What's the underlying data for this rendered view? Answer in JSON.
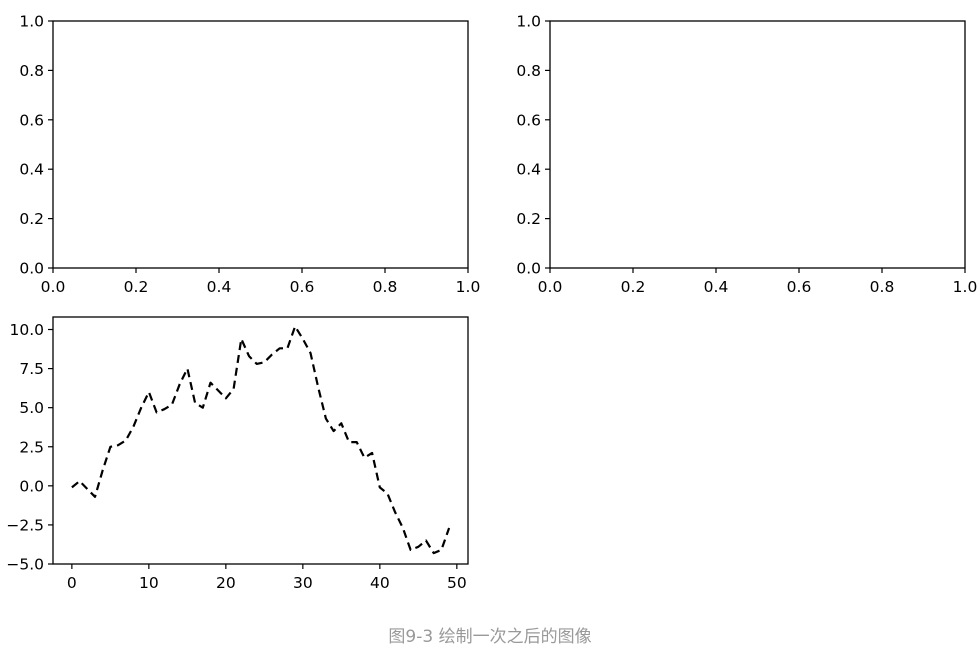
{
  "caption": "图9-3 绘制一次之后的图像",
  "colors": {
    "axes": "#000000",
    "line": "#000000",
    "caption": "#999999",
    "background": "#ffffff"
  },
  "chart_data": [
    {
      "type": "line",
      "subplot": "top-left",
      "empty": true,
      "xlim": [
        0,
        1.0
      ],
      "ylim": [
        0,
        1.0
      ],
      "xticks": [
        "0.0",
        "0.2",
        "0.4",
        "0.6",
        "0.8",
        "1.0"
      ],
      "yticks": [
        "0.0",
        "0.2",
        "0.4",
        "0.6",
        "0.8",
        "1.0"
      ],
      "grid": false,
      "series": []
    },
    {
      "type": "line",
      "subplot": "top-right",
      "empty": true,
      "xlim": [
        0,
        1.0
      ],
      "ylim": [
        0,
        1.0
      ],
      "xticks": [
        "0.0",
        "0.2",
        "0.4",
        "0.6",
        "0.8",
        "1.0"
      ],
      "yticks": [
        "0.0",
        "0.2",
        "0.4",
        "0.6",
        "0.8",
        "1.0"
      ],
      "grid": false,
      "series": []
    },
    {
      "type": "line",
      "subplot": "bottom-left",
      "xlim": [
        -2.45,
        51.45
      ],
      "ylim": [
        -5.0,
        10.8
      ],
      "xticks": [
        "0",
        "10",
        "20",
        "30",
        "40",
        "50"
      ],
      "yticks": [
        "−5.0",
        "−2.5",
        "0.0",
        "2.5",
        "5.0",
        "7.5",
        "10.0"
      ],
      "grid": false,
      "series": [
        {
          "style": "k--",
          "color": "#000000",
          "x": [
            0,
            1,
            2,
            3,
            4,
            5,
            6,
            7,
            8,
            9,
            10,
            11,
            12,
            13,
            14,
            15,
            16,
            17,
            18,
            19,
            20,
            21,
            22,
            23,
            24,
            25,
            26,
            27,
            28,
            29,
            30,
            31,
            32,
            33,
            34,
            35,
            36,
            37,
            38,
            39,
            40,
            41,
            42,
            43,
            44,
            45,
            46,
            47,
            48,
            49
          ],
          "y": [
            -0.1,
            0.3,
            -0.2,
            -0.7,
            1.0,
            2.5,
            2.6,
            2.9,
            3.8,
            5.0,
            6.0,
            4.7,
            4.9,
            5.2,
            6.5,
            7.5,
            5.3,
            5.0,
            6.6,
            6.1,
            5.6,
            6.2,
            9.4,
            8.3,
            7.8,
            7.9,
            8.4,
            8.8,
            8.8,
            10.2,
            9.4,
            8.5,
            6.3,
            4.3,
            3.5,
            4.0,
            2.8,
            2.8,
            1.8,
            2.1,
            -0.1,
            -0.5,
            -1.7,
            -2.7,
            -4.1,
            -3.9,
            -3.5,
            -4.3,
            -4.1,
            -2.7
          ]
        }
      ]
    }
  ]
}
